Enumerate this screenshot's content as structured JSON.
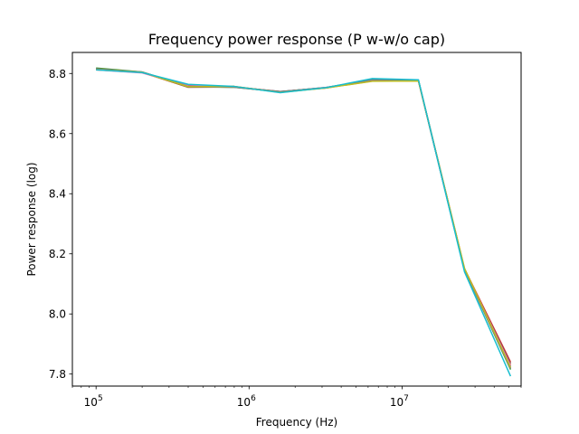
{
  "chart_data": {
    "type": "line",
    "title": "Frequency power response (P w-w/o cap)",
    "xlabel": "Frequency (Hz)",
    "ylabel": "Power response (log)",
    "xscale": "log",
    "xlim": [
      70000,
      60000000
    ],
    "ylim": [
      7.76,
      8.87
    ],
    "x_ticks": [
      {
        "value": 100000,
        "base": "10",
        "exp": "5"
      },
      {
        "value": 1000000,
        "base": "10",
        "exp": "6"
      },
      {
        "value": 10000000,
        "base": "10",
        "exp": "7"
      }
    ],
    "y_ticks": [
      {
        "value": 7.8,
        "label": "7.8"
      },
      {
        "value": 8.0,
        "label": "8.0"
      },
      {
        "value": 8.2,
        "label": "8.2"
      },
      {
        "value": 8.4,
        "label": "8.4"
      },
      {
        "value": 8.6,
        "label": "8.6"
      },
      {
        "value": 8.8,
        "label": "8.8"
      }
    ],
    "grid": false,
    "legend": "none",
    "x": [
      100000,
      200000,
      400000,
      800000,
      1600000,
      3200000,
      6400000,
      12800000,
      25600000,
      51200000
    ],
    "series": [
      {
        "color": "#1f77b4",
        "values": [
          8.815,
          8.804,
          8.758,
          8.755,
          8.74,
          8.753,
          8.78,
          8.776,
          8.145,
          7.825
        ]
      },
      {
        "color": "#ff7f0e",
        "values": [
          8.812,
          8.803,
          8.755,
          8.757,
          8.738,
          8.752,
          8.775,
          8.775,
          8.15,
          7.83
        ]
      },
      {
        "color": "#2ca02c",
        "values": [
          8.818,
          8.805,
          8.756,
          8.754,
          8.739,
          8.754,
          8.778,
          8.777,
          8.148,
          7.815
        ]
      },
      {
        "color": "#d62728",
        "values": [
          8.813,
          8.804,
          8.76,
          8.756,
          8.738,
          8.753,
          8.779,
          8.776,
          8.15,
          7.84
        ]
      },
      {
        "color": "#9467bd",
        "values": [
          8.814,
          8.803,
          8.757,
          8.755,
          8.739,
          8.753,
          8.777,
          8.776,
          8.147,
          7.82
        ]
      },
      {
        "color": "#8c564b",
        "values": [
          8.816,
          8.804,
          8.754,
          8.755,
          8.74,
          8.752,
          8.781,
          8.777,
          8.146,
          7.835
        ]
      },
      {
        "color": "#e377c2",
        "values": [
          8.812,
          8.802,
          8.759,
          8.756,
          8.738,
          8.754,
          8.776,
          8.775,
          8.149,
          7.828
        ]
      },
      {
        "color": "#7f7f7f",
        "values": [
          8.815,
          8.805,
          8.757,
          8.754,
          8.739,
          8.753,
          8.779,
          8.776,
          8.146,
          7.818
        ]
      },
      {
        "color": "#bcbd22",
        "values": [
          8.813,
          8.804,
          8.756,
          8.757,
          8.737,
          8.752,
          8.774,
          8.775,
          8.152,
          7.822
        ]
      },
      {
        "color": "#17becf",
        "values": [
          8.812,
          8.803,
          8.764,
          8.757,
          8.736,
          8.753,
          8.783,
          8.779,
          8.14,
          7.793
        ]
      }
    ]
  }
}
